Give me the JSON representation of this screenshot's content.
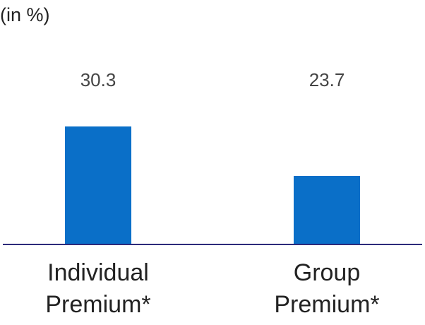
{
  "chart_data": {
    "type": "bar",
    "unit_label": "(in %)",
    "categories": [
      {
        "lines": [
          "Individual",
          "Premium*"
        ]
      },
      {
        "lines": [
          "Group",
          "Premium*"
        ]
      }
    ],
    "values": [
      30.3,
      23.7
    ],
    "value_labels": [
      "30.3",
      "23.7"
    ],
    "bar_color": "#0a6fc8",
    "axis_color": "#2d2a7a",
    "grid": false,
    "legend": "none"
  }
}
